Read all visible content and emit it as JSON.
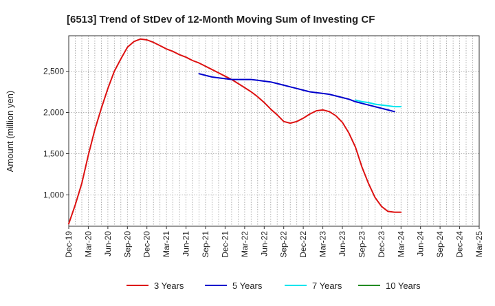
{
  "chart_data": {
    "type": "line",
    "title": "[6513]  Trend of StDev of 12-Month Moving Sum of Investing CF",
    "xlabel": "",
    "ylabel": "Amount (million yen)",
    "ylim": [
      620,
      2930
    ],
    "y_ticks": [
      1000,
      1500,
      2000,
      2500
    ],
    "y_tick_labels": [
      "1,000",
      "1,500",
      "2,000",
      "2,500"
    ],
    "x_tick_labels": [
      "Dec-19",
      "Mar-20",
      "Jun-20",
      "Sep-20",
      "Dec-20",
      "Mar-21",
      "Jun-21",
      "Sep-21",
      "Dec-21",
      "Mar-22",
      "Jun-22",
      "Sep-22",
      "Dec-22",
      "Mar-23",
      "Jun-23",
      "Sep-23",
      "Dec-23",
      "Mar-24",
      "Jun-24",
      "Sep-24",
      "Dec-24",
      "Mar-25"
    ],
    "x_range": [
      0,
      63
    ],
    "grid": true,
    "legend_position": "bottom",
    "series": [
      {
        "name": "3 Years",
        "color": "#dd1111",
        "start_index": 0,
        "values": [
          650,
          880,
          1140,
          1480,
          1790,
          2050,
          2290,
          2500,
          2650,
          2790,
          2860,
          2890,
          2880,
          2850,
          2810,
          2770,
          2740,
          2700,
          2670,
          2630,
          2600,
          2560,
          2520,
          2480,
          2440,
          2400,
          2350,
          2300,
          2250,
          2190,
          2120,
          2040,
          1970,
          1890,
          1870,
          1890,
          1930,
          1980,
          2020,
          2030,
          2010,
          1960,
          1880,
          1750,
          1580,
          1340,
          1140,
          970,
          860,
          800,
          790,
          790
        ]
      },
      {
        "name": "5 Years",
        "color": "#0000cc",
        "start_index": 20,
        "values": [
          2470,
          2450,
          2430,
          2420,
          2410,
          2400,
          2400,
          2400,
          2400,
          2390,
          2380,
          2370,
          2350,
          2330,
          2310,
          2290,
          2270,
          2250,
          2240,
          2230,
          2220,
          2200,
          2180,
          2160,
          2130,
          2110,
          2090,
          2070,
          2050,
          2030,
          2010
        ]
      },
      {
        "name": "7 Years",
        "color": "#00e5ee",
        "start_index": 44,
        "values": [
          2150,
          2130,
          2120,
          2100,
          2090,
          2080,
          2070,
          2070
        ]
      },
      {
        "name": "10 Years",
        "color": "#228b22",
        "start_index": 0,
        "values": []
      }
    ]
  }
}
